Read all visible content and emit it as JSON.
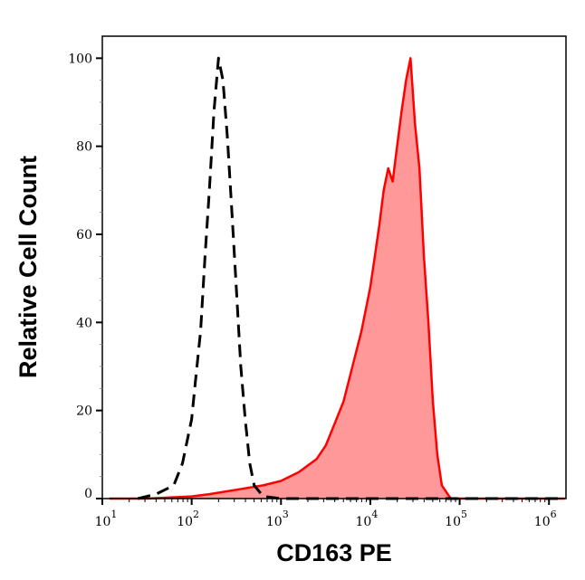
{
  "chart_data": {
    "type": "area",
    "title": "",
    "xlabel": "CD163 PE",
    "ylabel": "Relative Cell Count",
    "xscale": "log",
    "xlim": [
      10,
      1550000
    ],
    "ylim": [
      0,
      105
    ],
    "x_tick_labels": [
      {
        "base": "10",
        "exp": "1",
        "value": 10
      },
      {
        "base": "10",
        "exp": "2",
        "value": 100
      },
      {
        "base": "10",
        "exp": "3",
        "value": 1000
      },
      {
        "base": "10",
        "exp": "4",
        "value": 10000
      },
      {
        "base": "10",
        "exp": "5",
        "value": 100000
      },
      {
        "base": "10",
        "exp": "6",
        "value": 1000000
      }
    ],
    "y_ticks": [
      0,
      20,
      40,
      60,
      80,
      100
    ],
    "y_tick_labels": [
      "0",
      "20",
      "40",
      "60",
      "80",
      "100"
    ],
    "grid": false,
    "legend": "none",
    "series": [
      {
        "style": "dashed-line",
        "color": "#000000",
        "fill": "none",
        "x": [
          25,
          40,
          63,
          79,
          100,
          112,
          126,
          141,
          158,
          178,
          200,
          224,
          251,
          282,
          316,
          355,
          398,
          447,
          501,
          631,
          1000,
          31623,
          1500000
        ],
        "y": [
          0,
          1,
          3,
          8,
          18,
          28,
          38,
          55,
          70,
          88,
          100,
          95,
          82,
          65,
          48,
          30,
          18,
          8,
          3,
          0.5,
          0,
          0,
          0
        ]
      },
      {
        "style": "solid-line-filled",
        "color": "#ff0000",
        "fill": "#ff9999",
        "x": [
          12,
          32,
          100,
          158,
          316,
          631,
          1000,
          1585,
          2512,
          3162,
          3981,
          5012,
          6310,
          7943,
          10000,
          11220,
          12589,
          14125,
          15849,
          17783,
          19953,
          22387,
          25119,
          28184,
          31623,
          35481,
          39811,
          44668,
          50119,
          56234,
          63096,
          79433,
          158489,
          1500000
        ],
        "y": [
          0,
          0,
          0.5,
          1,
          2,
          3,
          4,
          6,
          9,
          12,
          17,
          22,
          30,
          38,
          48,
          55,
          62,
          70,
          75,
          72,
          80,
          88,
          95,
          100,
          85,
          75,
          55,
          40,
          22,
          10,
          3,
          0,
          0,
          0
        ]
      }
    ]
  }
}
